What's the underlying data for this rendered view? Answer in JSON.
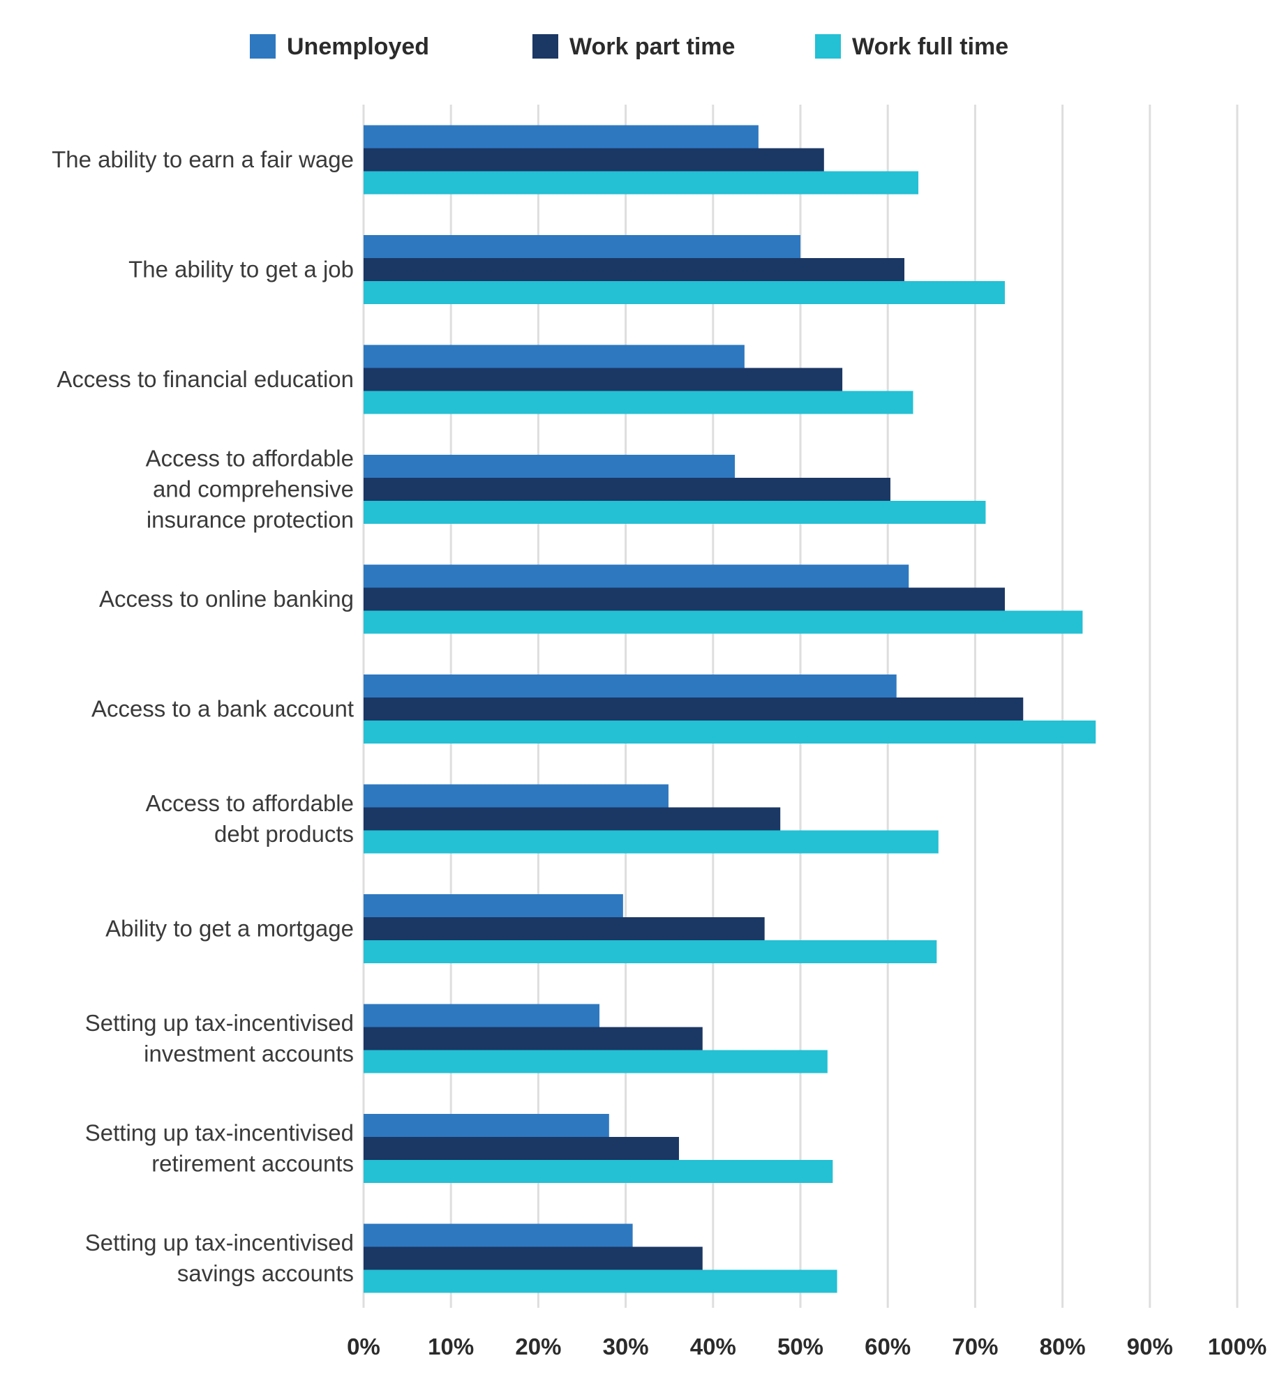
{
  "chart_data": {
    "type": "bar",
    "orientation": "horizontal",
    "categories": [
      [
        "The ability to earn a fair wage"
      ],
      [
        "The ability to get a job"
      ],
      [
        "Access to financial education"
      ],
      [
        "Access to affordable",
        "and comprehensive",
        "insurance protection"
      ],
      [
        "Access to online banking"
      ],
      [
        "Access to a bank account"
      ],
      [
        "Access to affordable",
        "debt products"
      ],
      [
        "Ability to get a mortgage"
      ],
      [
        "Setting up tax-incentivised",
        "investment accounts"
      ],
      [
        "Setting up tax-incentivised",
        "retirement accounts"
      ],
      [
        "Setting up tax-incentivised",
        "savings accounts"
      ]
    ],
    "series": [
      {
        "name": "Unemployed",
        "color": "#2e78c0",
        "values": [
          45.2,
          50.0,
          43.6,
          42.5,
          62.4,
          61.0,
          34.9,
          29.7,
          27.0,
          28.1,
          30.8
        ]
      },
      {
        "name": "Work part time",
        "color": "#1b3764",
        "values": [
          52.7,
          61.9,
          54.8,
          60.3,
          73.4,
          75.5,
          47.7,
          45.9,
          38.8,
          36.1,
          38.8
        ]
      },
      {
        "name": "Work full time",
        "color": "#24c0d4",
        "values": [
          63.5,
          73.4,
          62.9,
          71.2,
          82.3,
          83.8,
          65.8,
          65.6,
          53.1,
          53.7,
          54.2
        ]
      }
    ],
    "xlim": [
      0,
      100
    ],
    "xticks": [
      "0%",
      "10%",
      "20%",
      "30%",
      "40%",
      "50%",
      "60%",
      "70%",
      "80%",
      "90%",
      "100%"
    ],
    "grid": true,
    "legend": "top"
  }
}
